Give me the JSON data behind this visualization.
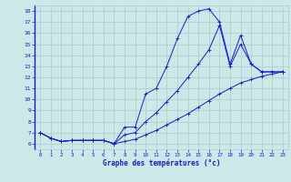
{
  "xlabel": "Graphe des températures (°c)",
  "background_color": "#cce8e8",
  "line_color": "#1a1acc",
  "grid_color": "#aacccc",
  "x_min": 0,
  "x_max": 23,
  "y_min": 6,
  "y_max": 18,
  "series1_x": [
    0,
    1,
    2,
    3,
    4,
    5,
    6,
    7,
    8,
    9,
    10,
    11,
    12,
    13,
    14,
    15,
    16,
    17,
    18,
    19,
    20,
    21,
    22,
    23
  ],
  "series1_y": [
    7.0,
    6.5,
    6.2,
    6.3,
    6.3,
    6.3,
    6.3,
    6.0,
    7.5,
    7.5,
    10.5,
    11.0,
    13.0,
    15.5,
    17.5,
    18.0,
    18.2,
    17.0,
    13.2,
    15.8,
    13.2,
    12.5,
    12.5,
    12.5
  ],
  "series2_x": [
    0,
    1,
    2,
    3,
    4,
    5,
    6,
    7,
    8,
    9,
    10,
    11,
    12,
    13,
    14,
    15,
    16,
    17,
    18,
    19,
    20,
    21,
    22,
    23
  ],
  "series2_y": [
    7.0,
    6.5,
    6.2,
    6.3,
    6.3,
    6.3,
    6.3,
    6.0,
    6.2,
    6.4,
    6.8,
    7.2,
    7.7,
    8.2,
    8.7,
    9.3,
    9.9,
    10.5,
    11.0,
    11.5,
    11.8,
    12.1,
    12.3,
    12.5
  ],
  "series3_x": [
    0,
    1,
    2,
    3,
    4,
    5,
    6,
    7,
    8,
    9,
    10,
    11,
    12,
    13,
    14,
    15,
    16,
    17,
    18,
    19,
    20,
    21,
    22,
    23
  ],
  "series3_y": [
    7.0,
    6.5,
    6.2,
    6.3,
    6.3,
    6.3,
    6.3,
    6.0,
    6.8,
    7.0,
    8.0,
    8.8,
    9.8,
    10.8,
    12.0,
    13.2,
    14.5,
    16.7,
    13.0,
    15.0,
    13.2,
    12.5,
    12.5,
    12.5
  ],
  "yticks": [
    6,
    7,
    8,
    9,
    10,
    11,
    12,
    13,
    14,
    15,
    16,
    17,
    18
  ],
  "xticks": [
    0,
    1,
    2,
    3,
    4,
    5,
    6,
    7,
    8,
    9,
    10,
    11,
    12,
    13,
    14,
    15,
    16,
    17,
    18,
    19,
    20,
    21,
    22,
    23
  ]
}
